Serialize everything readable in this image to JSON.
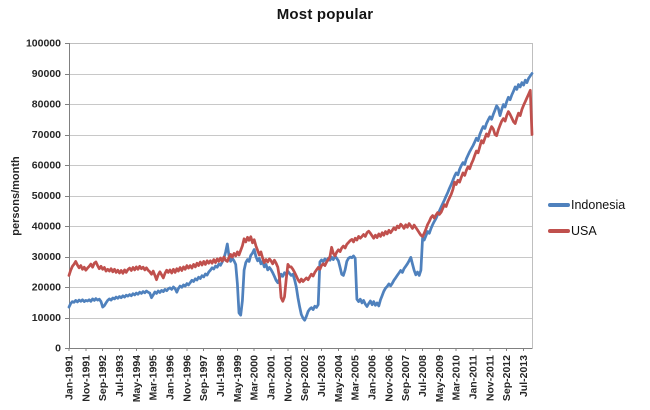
{
  "chart_data": {
    "type": "line",
    "title": "Most popular",
    "ylabel": "persons/month",
    "ylim": [
      0,
      100000
    ],
    "y_tick_step": 10000,
    "y_tick_labels": [
      "0",
      "10000",
      "20000",
      "30000",
      "40000",
      "50000",
      "60000",
      "70000",
      "80000",
      "90000",
      "100000"
    ],
    "grid": "horizontal",
    "legend_position": "right",
    "x_unit": "month",
    "x_start": "Jan-1991",
    "x_tick_every": 10,
    "x_tick_labels": [
      "Jan-1991",
      "Nov-1991",
      "Sep-1992",
      "Jul-1993",
      "May-1994",
      "Mar-1995",
      "Jan-1996",
      "Nov-1996",
      "Sep-1997",
      "Jul-1998",
      "May-1999",
      "Mar-2000",
      "Jan-2001",
      "Nov-2001",
      "Sep-2002",
      "Jul-2003",
      "May-2004",
      "Mar-2005",
      "Jan-2006",
      "Nov-2006",
      "Sep-2007",
      "Jul-2008",
      "May-2009",
      "Mar-2010",
      "Jan-2011",
      "Nov-2011",
      "Sep-2012",
      "Jul-2013"
    ],
    "series": [
      {
        "name": "Indonesia",
        "color": "#4F81BD",
        "values_by_year": [
          [
            13400,
            14600,
            15200,
            15000,
            15600,
            15100,
            15700,
            15300,
            15800,
            15200,
            15600,
            15400
          ],
          [
            15800,
            15300,
            16100,
            15600,
            16200,
            15700,
            16000,
            15200,
            13400,
            13900,
            14800,
            15600
          ],
          [
            16100,
            15700,
            16400,
            16100,
            16700,
            16300,
            16900,
            16500,
            17100,
            16700,
            17300,
            17000
          ],
          [
            17500,
            17100,
            17800,
            17400,
            18000,
            17600,
            18300,
            17900,
            18500,
            18100,
            18700,
            18300
          ],
          [
            18000,
            16500,
            17400,
            18400,
            17900,
            18700,
            18200,
            18900,
            18500,
            19200,
            18800,
            19400
          ],
          [
            19700,
            19200,
            20000,
            19500,
            18300,
            19500,
            20300,
            19900,
            20700,
            20300,
            21100,
            20700
          ],
          [
            21400,
            22200,
            21800,
            22700,
            22300,
            23200,
            22800,
            23700,
            23300,
            24300,
            23900,
            24900
          ],
          [
            25500,
            26300,
            25900,
            26900,
            26500,
            27500,
            27100,
            28200,
            29400,
            31400,
            34100,
            30400
          ],
          [
            28400,
            29400,
            28600,
            27400,
            21000,
            11500,
            10800,
            15500,
            25500,
            28000,
            29000,
            28400
          ],
          [
            30400,
            31100,
            32300,
            30000,
            28600,
            29400,
            27600,
            28400,
            26600,
            27400,
            25600,
            26400
          ],
          [
            25700,
            24700,
            23500,
            22200,
            21400,
            22700,
            24200,
            23500,
            24700,
            24000,
            25100,
            24400
          ],
          [
            23800,
            24200,
            22400,
            20000,
            16400,
            13400,
            11000,
            9800,
            9100,
            10400,
            12000,
            12800
          ],
          [
            13200,
            12600,
            13700,
            13300,
            14200,
            28200,
            28900,
            28300,
            29200,
            28600,
            29400,
            28800
          ],
          [
            29800,
            29000,
            30200,
            29400,
            28600,
            26400,
            24200,
            23800,
            25600,
            28400,
            29400,
            29800
          ],
          [
            29600,
            30200,
            29400,
            16000,
            15200,
            16000,
            14800,
            15600,
            14400,
            13600,
            14600,
            15400
          ],
          [
            14200,
            15200,
            14000,
            14800,
            13800,
            15800,
            17200,
            18600,
            19600,
            20200,
            21000,
            20400
          ],
          [
            21200,
            22200,
            23000,
            23800,
            24600,
            25400,
            24800,
            26000,
            26800,
            27600,
            28600,
            29700
          ],
          [
            27500,
            25500,
            24000,
            24900,
            23800,
            25500,
            36200,
            35400,
            36800,
            38200,
            37600,
            39200
          ],
          [
            40500,
            41500,
            42500,
            43800,
            45000,
            46200,
            47400,
            48600,
            49800,
            51000,
            52400,
            53600
          ],
          [
            55000,
            56400,
            57400,
            56800,
            58600,
            59800,
            60800,
            60200,
            62000,
            63200,
            64400,
            65400
          ],
          [
            66400,
            67600,
            68800,
            68000,
            70000,
            71400,
            72600,
            72000,
            73600,
            74800,
            75800,
            75000
          ],
          [
            76600,
            78000,
            79400,
            78600,
            76200,
            78200,
            79800,
            79000,
            80800,
            82200,
            81400,
            83000
          ],
          [
            84200,
            85600,
            84800,
            86400,
            85600,
            87000,
            86200,
            87800,
            87000,
            88400,
            89200,
            90000
          ]
        ]
      },
      {
        "name": "USA",
        "color": "#C0504D",
        "values_by_year": [
          [
            23800,
            25500,
            26800,
            27500,
            28400,
            27200,
            26300,
            27000,
            25800,
            26500,
            25500,
            26200
          ],
          [
            26800,
            27500,
            26500,
            27800,
            28200,
            27000,
            26000,
            26800,
            25800,
            26400,
            25200,
            25800
          ],
          [
            25200,
            26000,
            25000,
            25800,
            24800,
            25500,
            24600,
            25400,
            24500,
            25600,
            24800,
            25700
          ],
          [
            26200,
            25400,
            26400,
            25600,
            26600,
            25800,
            26800,
            26000,
            26500,
            25600,
            26300,
            25500
          ],
          [
            25000,
            24200,
            25200,
            23800,
            22400,
            24000,
            25000,
            24000,
            23000,
            24500,
            25500,
            24800
          ],
          [
            25600,
            24600,
            25800,
            24800,
            26000,
            25200,
            26400,
            25400,
            26600,
            25800,
            27000,
            26200
          ],
          [
            27000,
            26200,
            27400,
            26600,
            27800,
            27000,
            28200,
            27200,
            28400,
            27400,
            28600,
            27800
          ],
          [
            28600,
            27800,
            29000,
            28000,
            29200,
            28400,
            29500,
            28500,
            29800,
            28800,
            28400,
            29600
          ],
          [
            30700,
            29800,
            31000,
            30200,
            31500,
            30500,
            32000,
            33500,
            35800,
            34800,
            36300,
            35300
          ],
          [
            36500,
            34500,
            35500,
            33500,
            32000,
            30500,
            31500,
            29500,
            28000,
            29000,
            28200,
            29200
          ],
          [
            28600,
            27600,
            28800,
            27800,
            26500,
            23000,
            16500,
            15300,
            16800,
            22500,
            27400,
            26600
          ],
          [
            26600,
            25800,
            24800,
            23600,
            22400,
            21600,
            22600,
            21800,
            22400,
            23000,
            22400,
            23400
          ],
          [
            24200,
            23600,
            24800,
            25600,
            26400,
            25800,
            27000,
            27600,
            27000,
            28200,
            29000,
            30000
          ],
          [
            33000,
            31000,
            30200,
            31400,
            32200,
            31600,
            32800,
            33400,
            32800,
            34000,
            34600,
            35200
          ],
          [
            35600,
            34800,
            36000,
            35400,
            36600,
            36000,
            36600,
            37200,
            36600,
            37800,
            38300,
            37600
          ],
          [
            36800,
            36000,
            37000,
            36200,
            37400,
            36600,
            37800,
            37000,
            38200,
            37400,
            38600,
            37800
          ],
          [
            38600,
            39400,
            38800,
            40000,
            39400,
            40600,
            40000,
            39200,
            40400,
            39600,
            40800,
            40000
          ],
          [
            39200,
            40300,
            39500,
            38700,
            37800,
            37000,
            36600,
            37600,
            39000,
            40500,
            41500,
            42800
          ],
          [
            43400,
            42600,
            43600,
            44400,
            43800,
            44500,
            45800,
            47000,
            46400,
            48000,
            49200,
            50400
          ],
          [
            52000,
            54400,
            53600,
            55000,
            54400,
            56000,
            57400,
            56600,
            58200,
            59400,
            58800,
            60400
          ],
          [
            61600,
            63200,
            64600,
            64000,
            66000,
            68000,
            67200,
            68800,
            70200,
            69400,
            71200,
            72600
          ],
          [
            71800,
            70000,
            69600,
            71500,
            73000,
            74400,
            75200,
            74400,
            76200,
            77500,
            76600,
            75400
          ],
          [
            74200,
            73600,
            75400,
            77000,
            76200,
            78200,
            79600,
            80800,
            82000,
            83200,
            84500,
            70000
          ]
        ]
      }
    ]
  },
  "legend": {
    "items": [
      {
        "label": "Indonesia",
        "color": "#4F81BD"
      },
      {
        "label": "USA",
        "color": "#C0504D"
      }
    ]
  },
  "style": {
    "gridline_color": "#C8C8C8",
    "axis_line_color": "#808080",
    "plot_border_color": "#BFBFBF",
    "tick_label_color": "#262626"
  }
}
